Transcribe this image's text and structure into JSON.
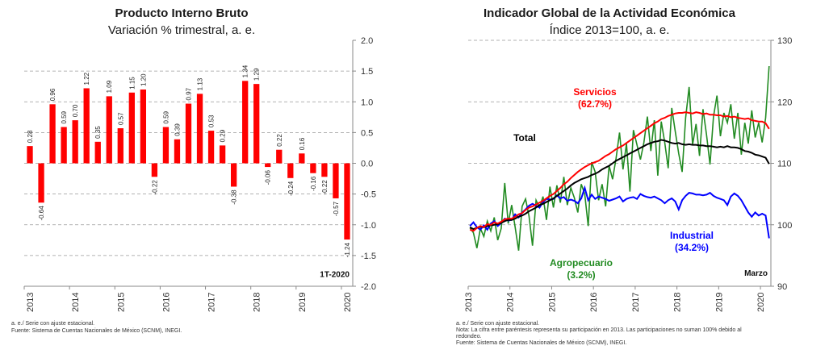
{
  "colors": {
    "bar": "#ff0000",
    "servicios": "#ff0000",
    "total": "#000000",
    "industrial": "#0000ff",
    "agropecuario": "#228b22",
    "grid": "#999999",
    "axis": "#888888"
  },
  "left": {
    "title": "Producto Interno Bruto",
    "subtitle": "Variación % trimestral, a. e.",
    "period_label": "1T-2020",
    "notes": [
      "a. e./ Serie con ajuste estacional.",
      "Fuente: Sistema de Cuentas Nacionales de México (SCNM), INEGI."
    ]
  },
  "right": {
    "title": "Indicador Global de la Actividad Económica",
    "subtitle": "Índice 2013=100, a. e.",
    "month_label": "Marzo",
    "labels": {
      "servicios": "Servicios",
      "servicios_share": "(62.7%)",
      "total": "Total",
      "industrial": "Industrial",
      "industrial_share": "(34.2%)",
      "agropecuario": "Agropecuario",
      "agropecuario_share": "(3.2%)"
    },
    "notes": [
      "a. e./ Serie con ajuste estacional.",
      "Nota: La cifra entre paréntesis representa su participación en 2013. Las participaciones no suman 100% debido al",
      "redondeo.",
      "Fuente: Sistema de Cuentas Nacionales de México (SCNM), INEGI."
    ]
  },
  "chart_data": [
    {
      "type": "bar",
      "title": "Producto Interno Bruto",
      "subtitle": "Variación % trimestral, a. e.",
      "xlabel": "",
      "ylabel": "",
      "ylim": [
        -2.0,
        2.0
      ],
      "yticks": [
        "2.0",
        "1.5",
        "1.0",
        "0.5",
        "0.0",
        "-0.5",
        "-1.0",
        "-1.5",
        "-2.0"
      ],
      "year_ticks": [
        "2013",
        "2014",
        "2015",
        "2016",
        "2017",
        "2018",
        "2019",
        "2020"
      ],
      "categories": [
        "2013-T1",
        "2013-T2",
        "2013-T3",
        "2013-T4",
        "2014-T1",
        "2014-T2",
        "2014-T3",
        "2014-T4",
        "2015-T1",
        "2015-T2",
        "2015-T3",
        "2015-T4",
        "2016-T1",
        "2016-T2",
        "2016-T3",
        "2016-T4",
        "2017-T1",
        "2017-T2",
        "2017-T3",
        "2017-T4",
        "2018-T1",
        "2018-T2",
        "2018-T3",
        "2018-T4",
        "2019-T1",
        "2019-T2",
        "2019-T3",
        "2019-T4",
        "2020-T1"
      ],
      "values": [
        0.28,
        -0.64,
        0.96,
        0.59,
        0.7,
        1.22,
        0.35,
        1.09,
        0.57,
        1.15,
        1.2,
        -0.22,
        0.59,
        0.39,
        0.97,
        1.13,
        0.53,
        0.29,
        -0.38,
        1.34,
        1.29,
        -0.06,
        0.22,
        -0.24,
        0.16,
        -0.16,
        -0.22,
        -0.57,
        -1.24
      ],
      "data_labels": [
        "0.28",
        "-0.64",
        "0.96",
        "0.59",
        "0.70",
        "1.22",
        "0.35",
        "1.09",
        "0.57",
        "1.15",
        "1.20",
        "-0.22",
        "0.59",
        "0.39",
        "0.97",
        "1.13",
        "0.53",
        "0.29",
        "-0.38",
        "1.34",
        "1.29",
        "-0.06",
        "0.22",
        "-0.24",
        "0.16",
        "-0.16",
        "-0.22",
        "-0.57",
        "-1.24"
      ]
    },
    {
      "type": "line",
      "title": "Indicador Global de la Actividad Económica",
      "subtitle": "Índice 2013=100, a. e.",
      "ylim": [
        90,
        130
      ],
      "yticks": [
        "130",
        "120",
        "110",
        "100",
        "90"
      ],
      "year_ticks": [
        "2013",
        "2014",
        "2015",
        "2016",
        "2017",
        "2018",
        "2019",
        "2020"
      ],
      "x_start": "2013-01",
      "frequency": "monthly",
      "series": [
        {
          "name": "Servicios",
          "values": [
            99.2,
            99.0,
            99.5,
            99.8,
            99.6,
            100.1,
            100.0,
            100.4,
            100.2,
            100.5,
            100.9,
            101.0,
            101.0,
            101.3,
            101.7,
            101.9,
            102.4,
            102.8,
            103.0,
            103.3,
            103.6,
            103.9,
            104.3,
            104.7,
            105.0,
            105.5,
            106.0,
            106.6,
            107.0,
            107.6,
            108.1,
            108.6,
            109.0,
            109.4,
            109.7,
            110.0,
            110.2,
            110.4,
            110.8,
            111.2,
            111.5,
            111.9,
            112.3,
            112.6,
            112.9,
            113.3,
            113.7,
            114.1,
            114.5,
            114.9,
            115.3,
            115.7,
            116.1,
            116.5,
            116.8,
            117.2,
            117.4,
            117.7,
            117.9,
            118.1,
            118.2,
            118.2,
            118.3,
            118.2,
            118.1,
            118.3,
            118.2,
            118.0,
            118.1,
            117.9,
            117.9,
            117.8,
            117.8,
            117.6,
            117.7,
            117.5,
            117.6,
            117.4,
            117.3,
            117.2,
            117.3,
            117.0,
            116.9,
            116.8,
            116.8,
            116.5,
            115.6
          ]
        },
        {
          "name": "Total",
          "values": [
            99.6,
            99.3,
            99.5,
            99.7,
            99.6,
            99.8,
            99.9,
            100.0,
            100.1,
            100.3,
            100.6,
            100.8,
            100.8,
            101.0,
            101.3,
            101.5,
            101.8,
            102.2,
            102.5,
            102.8,
            103.2,
            103.4,
            103.7,
            104.0,
            104.3,
            104.7,
            105.1,
            105.5,
            105.9,
            106.4,
            106.8,
            107.1,
            107.4,
            107.6,
            107.8,
            108.1,
            108.3,
            108.6,
            109.0,
            109.3,
            109.6,
            110.0,
            110.4,
            110.7,
            111.0,
            111.3,
            111.6,
            111.9,
            112.2,
            112.5,
            112.8,
            113.1,
            113.3,
            113.5,
            113.6,
            113.8,
            113.7,
            113.5,
            113.3,
            113.2,
            113.3,
            113.1,
            113.0,
            113.1,
            113.0,
            113.0,
            112.9,
            112.9,
            112.8,
            112.8,
            112.7,
            112.6,
            112.7,
            112.6,
            112.8,
            112.6,
            112.6,
            112.5,
            112.3,
            112.0,
            111.9,
            111.7,
            111.4,
            111.3,
            111.1,
            110.9,
            109.9
          ]
        },
        {
          "name": "Industrial",
          "values": [
            99.8,
            100.4,
            99.6,
            99.2,
            99.9,
            99.2,
            100.2,
            100.6,
            99.8,
            100.3,
            101.0,
            100.7,
            100.8,
            101.7,
            101.2,
            102.0,
            102.5,
            103.1,
            103.4,
            103.1,
            102.8,
            103.7,
            104.2,
            104.1,
            104.2,
            104.8,
            104.3,
            104.5,
            103.9,
            104.1,
            103.9,
            103.5,
            104.3,
            106.0,
            104.0,
            104.9,
            104.2,
            104.6,
            104.4,
            104.2,
            103.9,
            104.1,
            104.3,
            104.6,
            103.8,
            104.2,
            104.4,
            104.5,
            104.2,
            105.0,
            104.7,
            104.5,
            104.4,
            104.6,
            104.3,
            104.0,
            103.5,
            104.0,
            104.3,
            103.8,
            102.5,
            104.0,
            104.7,
            105.2,
            105.1,
            104.9,
            104.9,
            104.8,
            104.9,
            105.2,
            104.7,
            104.4,
            104.2,
            104.0,
            103.2,
            104.6,
            105.1,
            104.7,
            104.0,
            103.0,
            102.0,
            101.3,
            102.0,
            101.5,
            101.8,
            101.5,
            97.8
          ]
        },
        {
          "name": "Agropecuario",
          "values": [
            99.5,
            98.7,
            96.2,
            99.4,
            98.1,
            100.6,
            99.0,
            101.2,
            97.5,
            99.4,
            106.8,
            100.2,
            103.2,
            99.6,
            95.8,
            103.0,
            104.2,
            101.4,
            96.6,
            104.0,
            102.8,
            104.6,
            100.8,
            106.2,
            102.8,
            106.4,
            103.6,
            107.8,
            103.2,
            106.0,
            104.4,
            102.0,
            106.6,
            105.0,
            99.8,
            110.2,
            108.6,
            104.0,
            106.6,
            103.0,
            109.6,
            107.4,
            110.8,
            115.0,
            109.0,
            113.2,
            105.4,
            115.4,
            113.0,
            110.6,
            113.4,
            117.6,
            112.0,
            117.0,
            108.0,
            116.8,
            113.4,
            109.2,
            119.0,
            115.2,
            111.6,
            108.6,
            117.4,
            122.4,
            113.0,
            116.4,
            111.2,
            118.8,
            114.6,
            109.8,
            117.6,
            121.0,
            114.4,
            118.2,
            116.6,
            119.6,
            114.0,
            118.2,
            111.4,
            116.6,
            113.2,
            118.6,
            114.2,
            116.6,
            113.4,
            117.4,
            125.8
          ]
        }
      ]
    }
  ]
}
